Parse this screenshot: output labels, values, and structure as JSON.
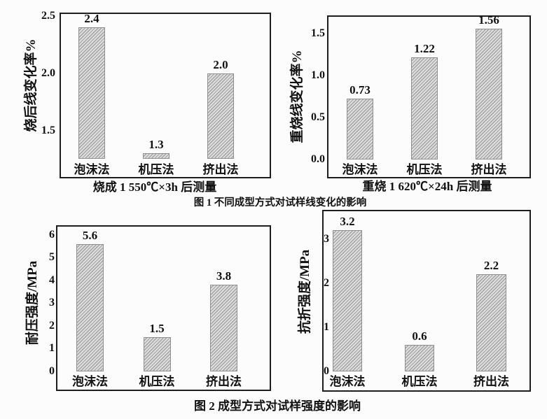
{
  "page": {
    "background": "#fcfcfc"
  },
  "figure_captions": [
    {
      "id": "fig1",
      "text": "图 1 不同成型方式对试样线变化的影响"
    },
    {
      "id": "fig2",
      "text": "图 2 成型方式对试样强度的影响"
    }
  ],
  "chart_data": [
    {
      "id": "fired-linear-change",
      "type": "bar",
      "title": "",
      "ylabel": "烧后线变化率%",
      "xlabel": "烧成 1 550℃×3h 后测量",
      "categories": [
        "泡沫法",
        "机压法",
        "挤出法"
      ],
      "values": [
        2.4,
        1.3,
        2.0
      ],
      "value_labels": [
        "2.4",
        "1.3",
        "2.0"
      ],
      "yticks": [
        1.5,
        2.0,
        2.5
      ],
      "ytick_labels": [
        "1.5",
        "2.0",
        "2.5"
      ],
      "ylim": [
        1.25,
        2.53
      ],
      "grid": false,
      "legend": false
    },
    {
      "id": "reheat-linear-change",
      "type": "bar",
      "title": "",
      "ylabel": "重烧线变化率%",
      "xlabel": "重烧 1 620℃×24h 后测量",
      "categories": [
        "泡沫法",
        "机压法",
        "挤出法"
      ],
      "values": [
        0.73,
        1.22,
        1.56
      ],
      "value_labels": [
        "0.73",
        "1.22",
        "1.56"
      ],
      "yticks": [
        0.0,
        0.5,
        1.0,
        1.5
      ],
      "ytick_labels": [
        "0.0",
        "0.5",
        "1.0",
        "1.5"
      ],
      "ylim": [
        0,
        1.72
      ],
      "grid": false,
      "legend": false
    },
    {
      "id": "compressive-strength",
      "type": "bar",
      "title": "",
      "ylabel": "耐压强度/MPa",
      "xlabel": "",
      "categories": [
        "泡沫法",
        "机压法",
        "挤出法"
      ],
      "values": [
        5.6,
        1.5,
        3.8
      ],
      "value_labels": [
        "5.6",
        "1.5",
        "3.8"
      ],
      "yticks": [
        0,
        1,
        2,
        3,
        4,
        5,
        6
      ],
      "ytick_labels": [
        "0",
        "1",
        "2",
        "3",
        "4",
        "5",
        "6"
      ],
      "ylim": [
        0,
        6.43
      ],
      "grid": false,
      "legend": false
    },
    {
      "id": "flexural-strength",
      "type": "bar",
      "title": "",
      "ylabel": "抗折强度/MPa",
      "xlabel": "",
      "categories": [
        "泡沫法",
        "机压法",
        "挤出法"
      ],
      "values": [
        3.2,
        0.6,
        2.2
      ],
      "value_labels": [
        "3.2",
        "0.6",
        "2.2"
      ],
      "yticks": [
        0,
        1,
        2,
        3
      ],
      "ytick_labels": [
        "0",
        "1",
        "2",
        "3"
      ],
      "ylim": [
        0,
        3.667
      ],
      "grid": false,
      "legend": false
    }
  ],
  "colors": {
    "frame": "#1e1e1e",
    "text": "#111111",
    "bar_fill": "#dedede",
    "bar_hatch": "#a3a3a3",
    "bar_border": "#8f8f8f",
    "background": "#fcfcfc"
  }
}
